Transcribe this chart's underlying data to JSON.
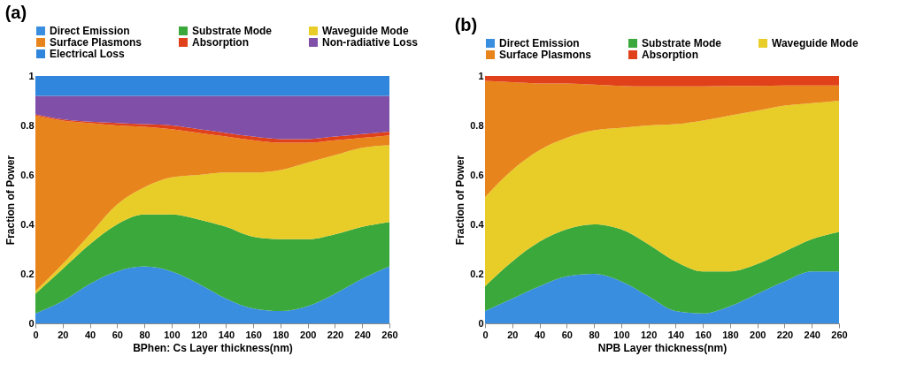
{
  "chart_data": [
    {
      "type": "area",
      "title": "(a)",
      "xlabel": "BPhen: Cs Layer thickness(nm)",
      "ylabel": "Fraction of Power",
      "stacked": true,
      "legend": "top",
      "grid": false,
      "x": [
        0,
        20,
        40,
        60,
        80,
        100,
        120,
        140,
        160,
        180,
        200,
        220,
        240,
        260
      ],
      "xlim": [
        0,
        260
      ],
      "xticks": [
        0,
        20,
        40,
        60,
        80,
        100,
        120,
        140,
        160,
        180,
        200,
        220,
        240,
        260
      ],
      "ylim": [
        0,
        1
      ],
      "yticks": [
        0,
        0.2,
        0.4,
        0.6,
        0.8,
        1
      ],
      "series": [
        {
          "name": "Direct Emission",
          "color": "#3a8ee0",
          "values": [
            0.04,
            0.09,
            0.16,
            0.21,
            0.23,
            0.21,
            0.16,
            0.1,
            0.06,
            0.05,
            0.07,
            0.12,
            0.18,
            0.23
          ]
        },
        {
          "name": "Substrate Mode",
          "color": "#3aa83a",
          "values": [
            0.08,
            0.13,
            0.16,
            0.19,
            0.21,
            0.23,
            0.26,
            0.29,
            0.29,
            0.29,
            0.27,
            0.24,
            0.21,
            0.18
          ]
        },
        {
          "name": "Waveguide Mode",
          "color": "#e8cc28",
          "values": [
            0.01,
            0.02,
            0.04,
            0.08,
            0.11,
            0.15,
            0.18,
            0.22,
            0.26,
            0.28,
            0.31,
            0.32,
            0.32,
            0.31
          ]
        },
        {
          "name": "Surface Plasmons",
          "color": "#e8841c",
          "values": [
            0.71,
            0.58,
            0.45,
            0.32,
            0.245,
            0.195,
            0.17,
            0.145,
            0.13,
            0.11,
            0.08,
            0.06,
            0.04,
            0.04
          ]
        },
        {
          "name": "Absorption",
          "color": "#e0401a",
          "values": [
            0.005,
            0.005,
            0.005,
            0.01,
            0.01,
            0.015,
            0.015,
            0.015,
            0.015,
            0.015,
            0.015,
            0.015,
            0.015,
            0.015
          ]
        },
        {
          "name": "Non-radiative Loss",
          "color": "#8050a8",
          "values": [
            0.075,
            0.095,
            0.105,
            0.11,
            0.115,
            0.12,
            0.135,
            0.15,
            0.165,
            0.175,
            0.175,
            0.165,
            0.155,
            0.145
          ]
        },
        {
          "name": "Electrical Loss",
          "color": "#2f86dc",
          "values": [
            0.08,
            0.08,
            0.08,
            0.08,
            0.08,
            0.08,
            0.08,
            0.08,
            0.08,
            0.08,
            0.08,
            0.08,
            0.08,
            0.08
          ]
        }
      ]
    },
    {
      "type": "area",
      "title": "(b)",
      "xlabel": "NPB Layer thickness(nm)",
      "ylabel": "Fraction of Power",
      "stacked": true,
      "legend": "top",
      "grid": false,
      "x": [
        0,
        20,
        40,
        60,
        80,
        100,
        120,
        140,
        160,
        180,
        200,
        220,
        240,
        260
      ],
      "xlim": [
        0,
        260
      ],
      "xticks": [
        0,
        20,
        40,
        60,
        80,
        100,
        120,
        140,
        160,
        180,
        200,
        220,
        240,
        260
      ],
      "ylim": [
        0,
        1
      ],
      "yticks": [
        0,
        0.2,
        0.4,
        0.6,
        0.8,
        1
      ],
      "series": [
        {
          "name": "Direct Emission",
          "color": "#3a8ee0",
          "values": [
            0.05,
            0.1,
            0.15,
            0.19,
            0.2,
            0.17,
            0.11,
            0.05,
            0.04,
            0.07,
            0.12,
            0.17,
            0.21,
            0.21
          ]
        },
        {
          "name": "Substrate Mode",
          "color": "#3aa83a",
          "values": [
            0.1,
            0.15,
            0.18,
            0.19,
            0.2,
            0.21,
            0.21,
            0.2,
            0.17,
            0.14,
            0.12,
            0.12,
            0.13,
            0.16
          ]
        },
        {
          "name": "Waveguide Mode",
          "color": "#e8cc28",
          "values": [
            0.36,
            0.37,
            0.37,
            0.37,
            0.38,
            0.41,
            0.48,
            0.555,
            0.61,
            0.63,
            0.62,
            0.59,
            0.55,
            0.53
          ]
        },
        {
          "name": "Surface Plasmons",
          "color": "#e8841c",
          "values": [
            0.47,
            0.355,
            0.27,
            0.22,
            0.185,
            0.17,
            0.158,
            0.153,
            0.138,
            0.12,
            0.1,
            0.082,
            0.072,
            0.062
          ]
        },
        {
          "name": "Absorption",
          "color": "#e0401a",
          "values": [
            0.02,
            0.025,
            0.03,
            0.03,
            0.035,
            0.04,
            0.042,
            0.042,
            0.042,
            0.04,
            0.04,
            0.038,
            0.038,
            0.038
          ]
        }
      ]
    }
  ]
}
